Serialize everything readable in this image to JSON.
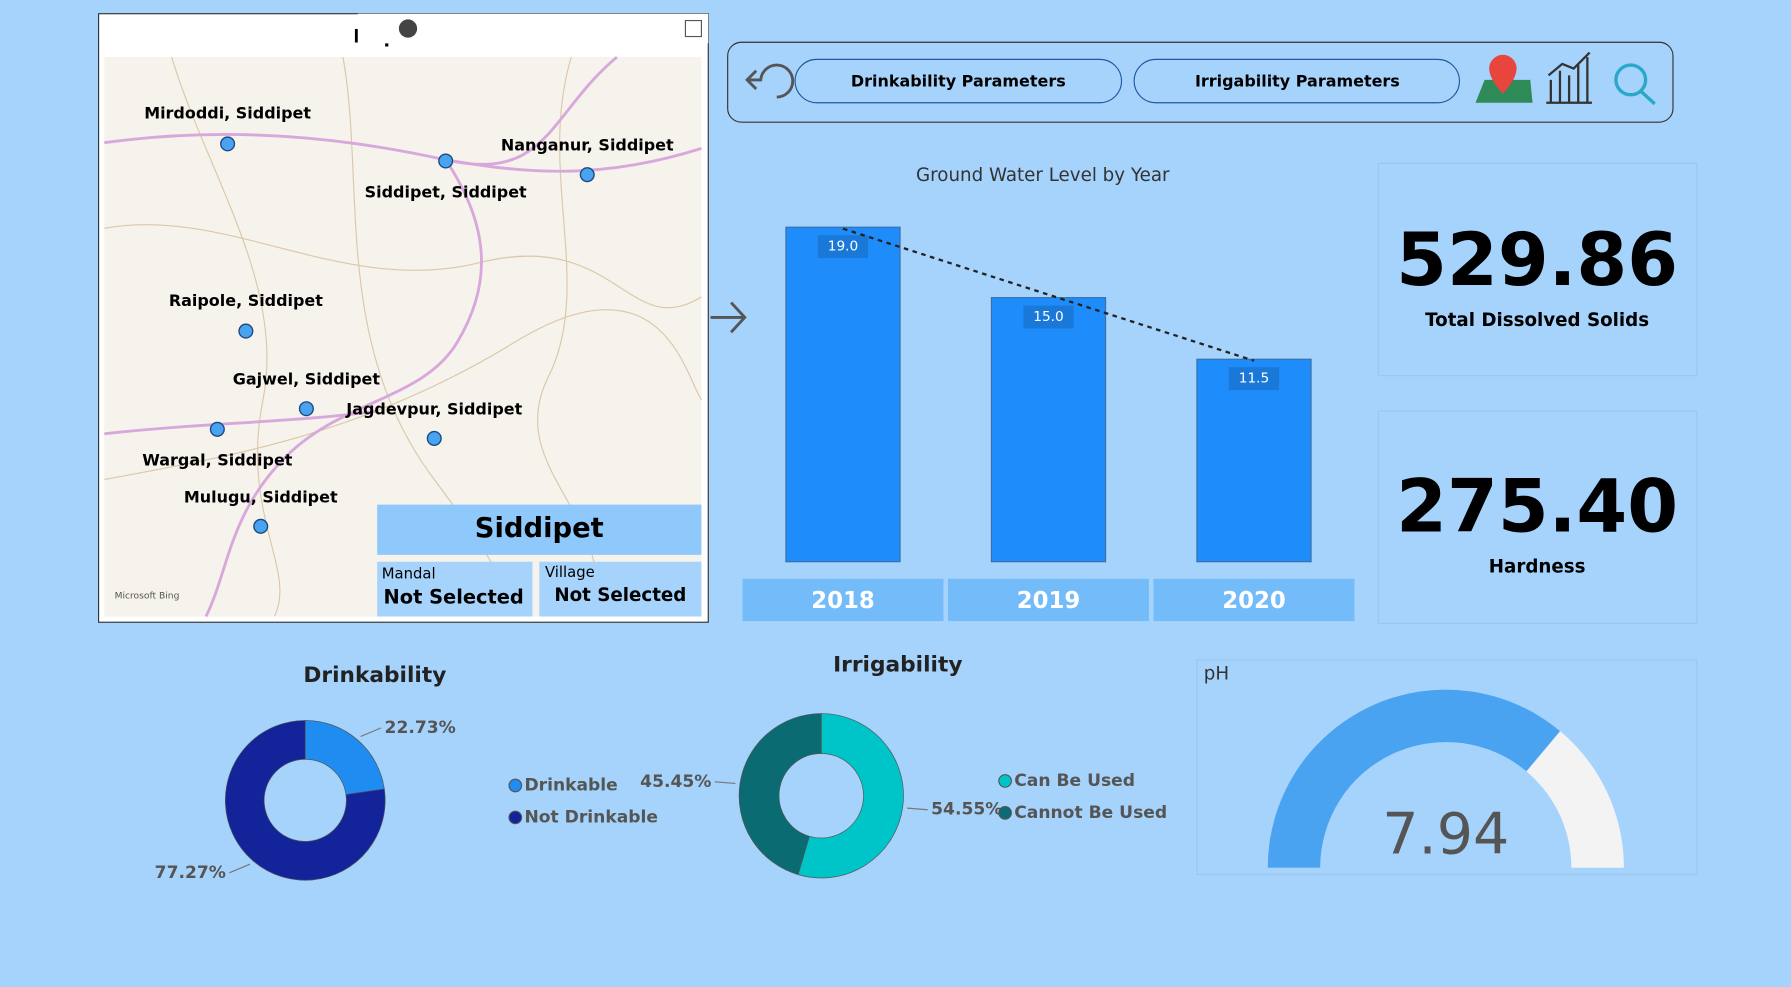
{
  "map": {
    "title": "Map Filter",
    "places": [
      "Mirdoddi, Siddipet",
      "Nanganur, Siddipet",
      "Siddipet, Siddipet",
      "Raipole, Siddipet",
      "Gajwel, Siddipet",
      "Jagdevpur, Siddipet",
      "Wargal, Siddipet",
      "Mulugu, Siddipet"
    ],
    "attribution": "Microsoft Bing"
  },
  "slicer": {
    "district": "Siddipet",
    "mandal_label": "Mandal",
    "mandal_value": "Not Selected",
    "village_label": "Village",
    "village_value": "Not Selected"
  },
  "nav": {
    "buttons": [
      "Drinkability Parameters",
      "Irrigability Parameters"
    ]
  },
  "cards": [
    {
      "value": "529.86",
      "label": "Total Dissolved Solids"
    },
    {
      "value": "275.40",
      "label": "Hardness"
    }
  ],
  "chart_data": [
    {
      "type": "bar",
      "title": "Ground Water Level by Year",
      "categories": [
        "2018",
        "2019",
        "2020"
      ],
      "values": [
        19.0,
        15.0,
        11.5
      ],
      "value_labels": [
        "19.0",
        "15.0",
        "11.5"
      ],
      "color": "#1e8cfa",
      "trendline": true
    },
    {
      "type": "donut",
      "title": "Drinkability",
      "categories": [
        "Drinkable",
        "Not Drinkable"
      ],
      "values": [
        22.73,
        77.27
      ],
      "value_labels": [
        "22.73%",
        "77.27%"
      ],
      "colors": [
        "#1e8cf0",
        "#13239a"
      ]
    },
    {
      "type": "donut",
      "title": "Irrigability",
      "categories": [
        "Can Be Used",
        "Cannot Be Used"
      ],
      "values": [
        54.55,
        45.45
      ],
      "value_labels": [
        "54.55%",
        "45.45%"
      ],
      "colors": [
        "#00c5c8",
        "#0b6b73"
      ]
    },
    {
      "type": "gauge",
      "title": "pH",
      "value": 7.94,
      "ylim": [
        0,
        11
      ],
      "color": "#4aa3f0"
    }
  ]
}
